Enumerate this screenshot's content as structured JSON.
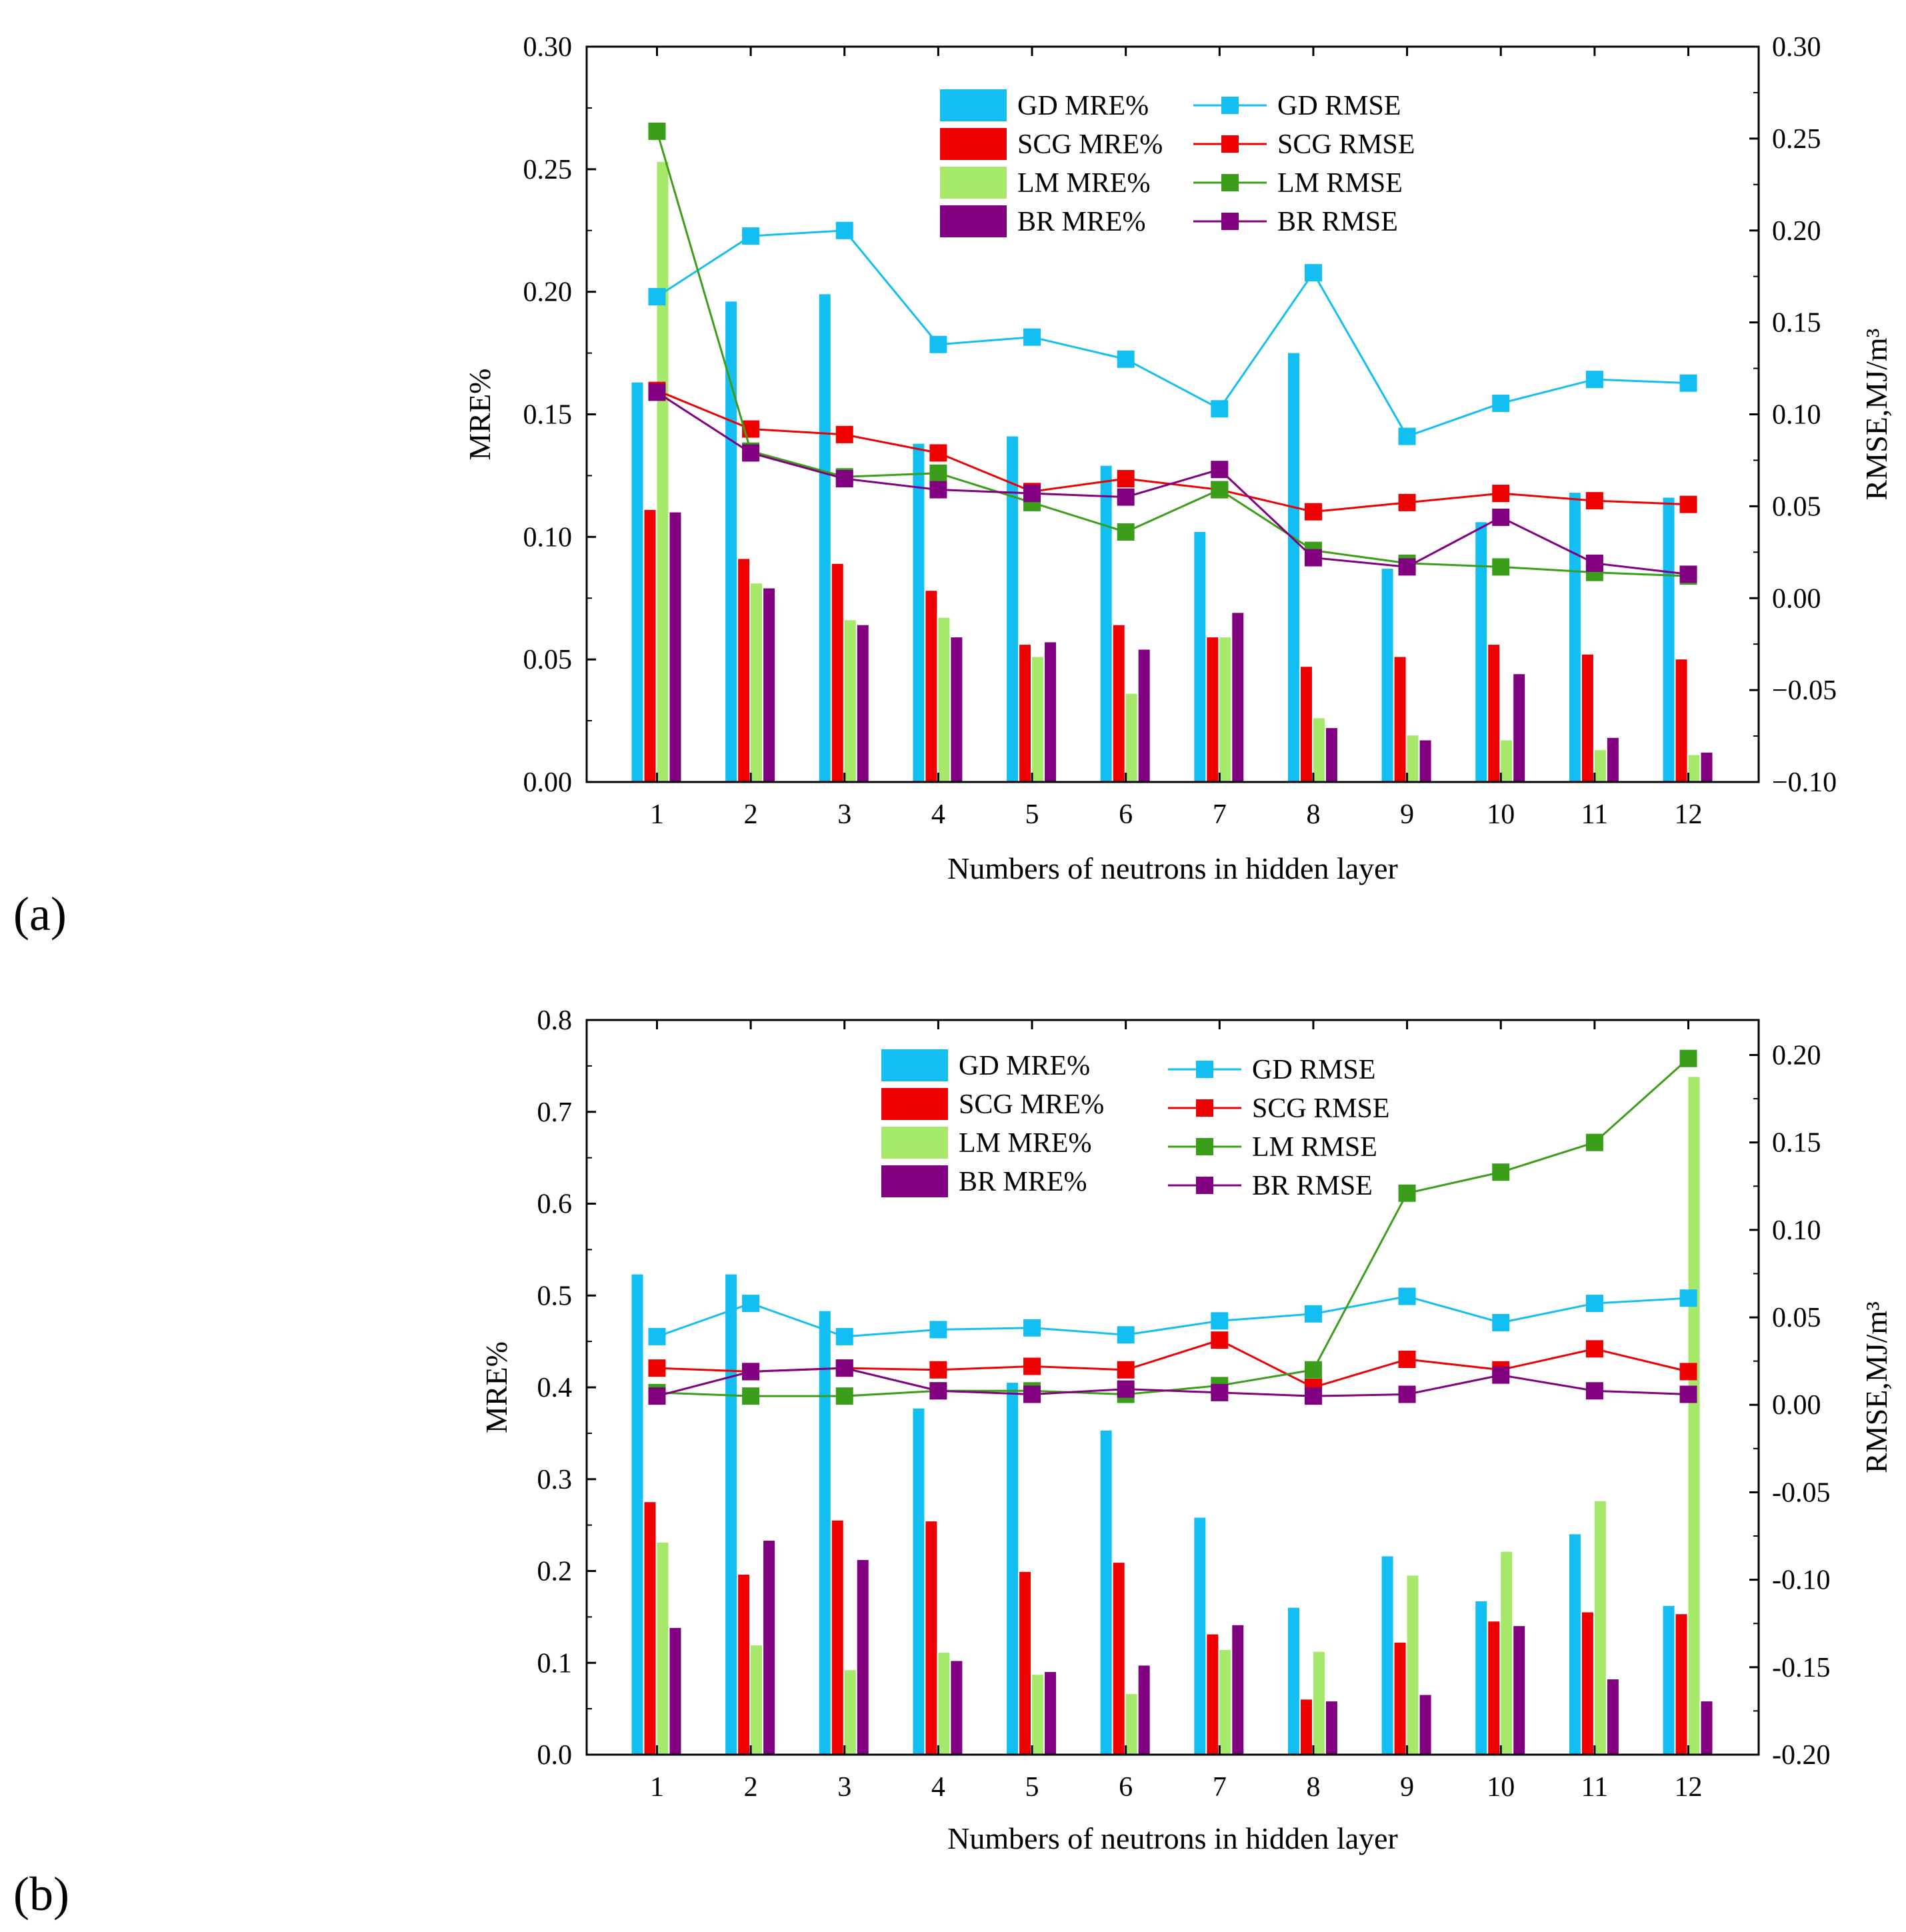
{
  "figure": {
    "panels": [
      "(a)",
      "(b)"
    ]
  },
  "colors": {
    "GD": "#12BEF2",
    "SCG": "#EE0000",
    "LM": "#A6E86A",
    "LM_line": "#3A9E1A",
    "BR": "#800080"
  },
  "chart_data": [
    {
      "type": "bar",
      "panel": "(a)",
      "categories": [
        "1",
        "2",
        "3",
        "4",
        "5",
        "6",
        "7",
        "8",
        "9",
        "10",
        "11",
        "12"
      ],
      "xlabel": "Numbers of neutrons in hidden layer",
      "ylabel": "MRE%",
      "y2label": "RMSE,MJ/m³",
      "ylim": [
        0,
        0.3
      ],
      "yticks": [
        "0.00",
        "0.05",
        "0.10",
        "0.15",
        "0.20",
        "0.25",
        "0.30"
      ],
      "y2lim": [
        -0.1,
        0.3
      ],
      "y2ticks": [
        "−0.10",
        "−0.05",
        "0.00",
        "0.05",
        "0.10",
        "0.15",
        "0.20",
        "0.25",
        "0.30"
      ],
      "series": [
        {
          "name": "GD MRE%",
          "kind": "bar",
          "key": "GD",
          "values": [
            0.163,
            0.196,
            0.199,
            0.138,
            0.141,
            0.129,
            0.102,
            0.175,
            0.087,
            0.106,
            0.118,
            0.116
          ]
        },
        {
          "name": "SCG MRE%",
          "kind": "bar",
          "key": "SCG",
          "values": [
            0.111,
            0.091,
            0.089,
            0.078,
            0.056,
            0.064,
            0.059,
            0.047,
            0.051,
            0.056,
            0.052,
            0.05
          ]
        },
        {
          "name": "LM MRE%",
          "kind": "bar",
          "key": "LM",
          "values": [
            0.253,
            0.081,
            0.066,
            0.067,
            0.051,
            0.036,
            0.059,
            0.026,
            0.019,
            0.017,
            0.013,
            0.011
          ]
        },
        {
          "name": "BR MRE%",
          "kind": "bar",
          "key": "BR",
          "values": [
            0.11,
            0.079,
            0.064,
            0.059,
            0.057,
            0.054,
            0.069,
            0.022,
            0.017,
            0.044,
            0.018,
            0.012
          ]
        },
        {
          "name": "GD RMSE",
          "kind": "line",
          "key": "GD",
          "values": [
            0.164,
            0.197,
            0.2,
            0.138,
            0.142,
            0.13,
            0.103,
            0.177,
            0.088,
            0.106,
            0.119,
            0.117
          ]
        },
        {
          "name": "SCG RMSE",
          "kind": "line",
          "key": "SCG",
          "values": [
            0.113,
            0.092,
            0.089,
            0.079,
            0.058,
            0.065,
            0.059,
            0.047,
            0.052,
            0.057,
            0.053,
            0.051
          ]
        },
        {
          "name": "LM RMSE",
          "kind": "line",
          "key": "LM",
          "values": [
            0.254,
            0.08,
            0.066,
            0.068,
            0.052,
            0.036,
            0.059,
            0.026,
            0.019,
            0.017,
            0.014,
            0.012
          ]
        },
        {
          "name": "BR RMSE",
          "kind": "line",
          "key": "BR",
          "values": [
            0.112,
            0.079,
            0.065,
            0.059,
            0.057,
            0.055,
            0.07,
            0.022,
            0.017,
            0.044,
            0.019,
            0.013
          ]
        }
      ],
      "legend_placement": "top"
    },
    {
      "type": "bar",
      "panel": "(b)",
      "categories": [
        "1",
        "2",
        "3",
        "4",
        "5",
        "6",
        "7",
        "8",
        "9",
        "10",
        "11",
        "12"
      ],
      "xlabel": "Numbers of neutrons in hidden layer",
      "ylabel": "MRE%",
      "y2label": "RMSE,MJ/m³",
      "ylim": [
        0,
        0.8
      ],
      "yticks": [
        "0.0",
        "0.1",
        "0.2",
        "0.3",
        "0.4",
        "0.5",
        "0.6",
        "0.7",
        "0.8"
      ],
      "y2lim": [
        -0.2,
        0.22
      ],
      "y2ticks": [
        "-0.20",
        "-0.15",
        "-0.10",
        "-0.05",
        "0.00",
        "0.05",
        "0.10",
        "0.15",
        "0.20"
      ],
      "series": [
        {
          "name": "GD MRE%",
          "kind": "bar",
          "key": "GD",
          "values": [
            0.523,
            0.523,
            0.483,
            0.377,
            0.405,
            0.353,
            0.258,
            0.16,
            0.216,
            0.167,
            0.24,
            0.162
          ]
        },
        {
          "name": "SCG MRE%",
          "kind": "bar",
          "key": "SCG",
          "values": [
            0.275,
            0.196,
            0.255,
            0.254,
            0.199,
            0.209,
            0.131,
            0.06,
            0.122,
            0.145,
            0.155,
            0.153
          ]
        },
        {
          "name": "LM MRE%",
          "kind": "bar",
          "key": "LM",
          "values": [
            0.231,
            0.119,
            0.092,
            0.111,
            0.087,
            0.066,
            0.114,
            0.112,
            0.195,
            0.221,
            0.276,
            0.738
          ]
        },
        {
          "name": "BR MRE%",
          "kind": "bar",
          "key": "BR",
          "values": [
            0.138,
            0.233,
            0.212,
            0.102,
            0.09,
            0.097,
            0.141,
            0.058,
            0.065,
            0.14,
            0.082,
            0.058
          ]
        },
        {
          "name": "GD RMSE",
          "kind": "line",
          "key": "GD",
          "values": [
            0.039,
            0.058,
            0.039,
            0.043,
            0.044,
            0.04,
            0.048,
            0.052,
            0.062,
            0.047,
            0.058,
            0.061
          ]
        },
        {
          "name": "SCG RMSE",
          "kind": "line",
          "key": "SCG",
          "values": [
            0.021,
            0.019,
            0.021,
            0.02,
            0.022,
            0.02,
            0.037,
            0.01,
            0.026,
            0.02,
            0.032,
            0.019
          ]
        },
        {
          "name": "LM RMSE",
          "kind": "line",
          "key": "LM",
          "values": [
            0.007,
            0.005,
            0.005,
            0.008,
            0.008,
            0.006,
            0.011,
            0.02,
            0.121,
            0.133,
            0.15,
            0.198
          ]
        },
        {
          "name": "BR RMSE",
          "kind": "line",
          "key": "BR",
          "values": [
            0.005,
            0.019,
            0.021,
            0.008,
            0.006,
            0.009,
            0.007,
            0.005,
            0.006,
            0.017,
            0.008,
            0.006
          ]
        }
      ],
      "legend_placement": "top"
    }
  ]
}
